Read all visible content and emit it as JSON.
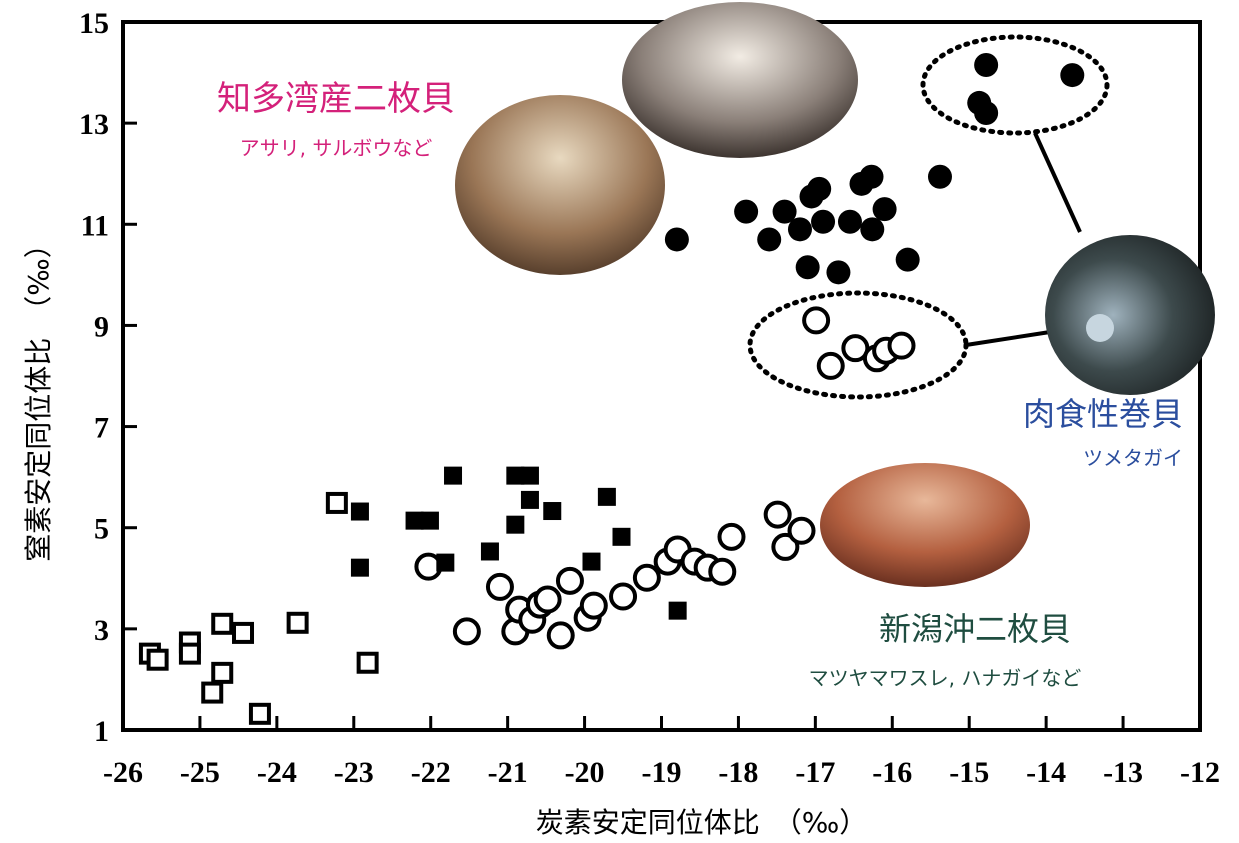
{
  "chart_data": {
    "type": "scatter",
    "xlabel": "炭素安定同位体比　（‰）",
    "ylabel": "窒素安定同位体比　（‰）",
    "xlim": [
      -26,
      -12
    ],
    "xticks": [
      -26,
      -25,
      -24,
      -23,
      -22,
      -21,
      -20,
      -19,
      -18,
      -17,
      -16,
      -15,
      -14,
      -13,
      -12
    ],
    "ylim": [
      1,
      15
    ],
    "yticks": [
      1,
      3,
      5,
      7,
      9,
      11,
      13,
      15
    ],
    "annotations": [
      {
        "text": "知多湾産二枚貝",
        "color": "#d4217a"
      },
      {
        "text": "アサリ, サルボウなど",
        "color": "#d4217a"
      },
      {
        "text": "肉食性巻貝",
        "color": "#2b4e9e"
      },
      {
        "text": "ツメタガイ",
        "color": "#2b4e9e"
      },
      {
        "text": "新潟沖二枚貝",
        "color": "#1f4d40"
      },
      {
        "text": "マツヤマワスレ, ハナガイなど",
        "color": "#1f4d40"
      }
    ],
    "series": [
      {
        "marker": "circle",
        "filled": true,
        "color": "#000000",
        "x": [
          -14.78,
          -13.66,
          -14.87,
          -14.78,
          -15.38,
          -16.27,
          -16.4,
          -16.95,
          -17.05,
          -17.9,
          -17.4,
          -16.1,
          -17.2,
          -16.9,
          -16.55,
          -16.26,
          -17.6,
          -18.8,
          -15.8,
          -17.1,
          -16.7
        ],
        "values": [
          14.15,
          13.95,
          13.4,
          13.2,
          11.94,
          11.94,
          11.8,
          11.7,
          11.55,
          11.25,
          11.25,
          11.3,
          10.9,
          11.05,
          11.05,
          10.9,
          10.7,
          10.7,
          10.3,
          10.15,
          10.05
        ]
      },
      {
        "marker": "circle",
        "filled": false,
        "color": "#000000",
        "x": [
          -16.99,
          -16.8,
          -16.48,
          -16.2,
          -16.08,
          -15.88,
          -22.03,
          -21.53,
          -21.1,
          -20.9,
          -20.85,
          -20.68,
          -20.58,
          -20.48,
          -20.31,
          -20.19,
          -19.96,
          -19.88,
          -19.5,
          -19.19,
          -18.92,
          -18.79,
          -18.57,
          -18.4,
          -18.21,
          -18.09,
          -17.49,
          -17.39,
          -17.18
        ],
        "values": [
          9.1,
          8.2,
          8.55,
          8.35,
          8.5,
          8.6,
          4.23,
          2.95,
          3.83,
          2.95,
          3.38,
          3.18,
          3.48,
          3.58,
          2.87,
          3.95,
          3.22,
          3.46,
          3.64,
          4.01,
          4.33,
          4.57,
          4.33,
          4.21,
          4.13,
          4.82,
          5.26,
          4.62,
          4.94
        ]
      },
      {
        "marker": "square",
        "filled": true,
        "color": "#000000",
        "x": [
          -22.92,
          -22.92,
          -22.21,
          -22.01,
          -21.81,
          -21.71,
          -21.23,
          -20.9,
          -20.71,
          -20.9,
          -20.71,
          -20.42,
          -19.91,
          -19.71,
          -19.52,
          -18.79
        ],
        "values": [
          5.32,
          4.21,
          5.14,
          5.14,
          4.31,
          6.03,
          4.53,
          6.03,
          6.03,
          5.06,
          5.55,
          5.33,
          4.33,
          5.61,
          4.82,
          3.36
        ]
      },
      {
        "marker": "square",
        "filled": false,
        "color": "#000000",
        "x": [
          -23.22,
          -25.65,
          -25.55,
          -25.13,
          -25.13,
          -24.71,
          -24.44,
          -24.71,
          -24.84,
          -24.22,
          -23.73,
          -22.82
        ],
        "values": [
          5.49,
          2.51,
          2.39,
          2.73,
          2.51,
          3.1,
          2.92,
          2.13,
          1.74,
          1.32,
          3.12,
          2.33
        ]
      }
    ]
  }
}
